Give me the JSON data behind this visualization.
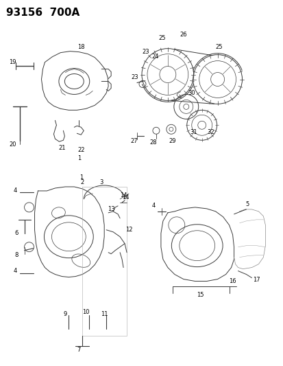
{
  "title": "93156  700A",
  "bg_color": "#ffffff",
  "title_fontsize": 11,
  "fig_width": 4.14,
  "fig_height": 5.33,
  "dpi": 100,
  "line_color": "#3a3a3a",
  "label_fontsize": 6.0
}
